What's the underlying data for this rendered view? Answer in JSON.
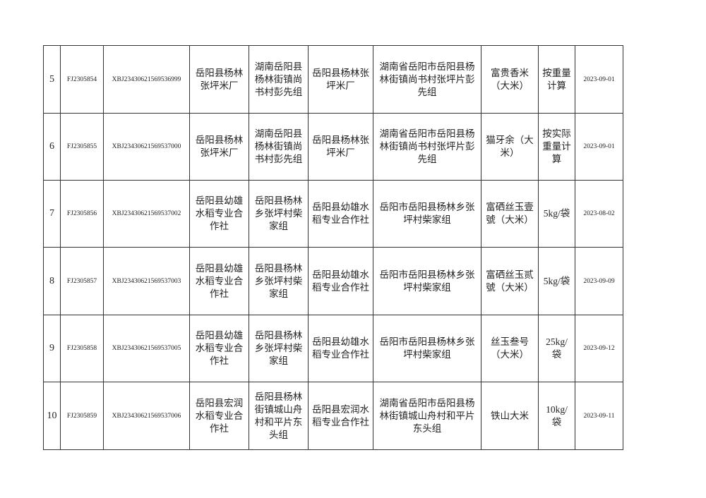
{
  "table": {
    "rows": [
      {
        "no": "5",
        "code": "FJ2305854",
        "sample_id": "XBJ23430621569536999",
        "producer": "岳阳县杨林\n张坪米厂",
        "producer_addr": "湖南岳阳县\n杨林街镇尚\n书村彭先组",
        "seller": "岳阳县杨林张\n坪米厂",
        "seller_addr": "湖南省岳阳市岳阳县杨\n林街镇尚书村张坪片彭\n先组",
        "product": "富贵香米\n（大米）",
        "spec": "按重量\n计算",
        "date": "2023-09-01"
      },
      {
        "no": "6",
        "code": "FJ2305855",
        "sample_id": "XBJ23430621569537000",
        "producer": "岳阳县杨林\n张坪米厂",
        "producer_addr": "湖南岳阳县\n杨林街镇尚\n书村彭先组",
        "seller": "岳阳县杨林张\n坪米厂",
        "seller_addr": "湖南省岳阳市岳阳县杨\n林街镇尚书村张坪片彭\n先组",
        "product": "猫牙余（大\n米）",
        "spec": "按实际\n重量计\n算",
        "date": "2023-09-01"
      },
      {
        "no": "7",
        "code": "FJ2305856",
        "sample_id": "XBJ23430621569537002",
        "producer": "岳阳县幼雄\n水稻专业合\n作社",
        "producer_addr": "岳阳县杨林\n乡张坪村柴\n家组",
        "seller": "岳阳县幼雄水\n稻专业合作社",
        "seller_addr": "岳阳市岳阳县杨林乡张\n坪村柴家组",
        "product": "富硒丝玉壹\n號（大米）",
        "spec": "5kg/袋",
        "date": "2023-08-02"
      },
      {
        "no": "8",
        "code": "FJ2305857",
        "sample_id": "XBJ23430621569537003",
        "producer": "岳阳县幼雄\n水稻专业合\n作社",
        "producer_addr": "岳阳县杨林\n乡张坪村柴\n家组",
        "seller": "岳阳县幼雄水\n稻专业合作社",
        "seller_addr": "岳阳市岳阳县杨林乡张\n坪村柴家组",
        "product": "富硒丝玉贰\n號（大米）",
        "spec": "5kg/袋",
        "date": "2023-09-09"
      },
      {
        "no": "9",
        "code": "FJ2305858",
        "sample_id": "XBJ23430621569537005",
        "producer": "岳阳县幼雄\n水稻专业合\n作社",
        "producer_addr": "岳阳县杨林\n乡张坪村柴\n家组",
        "seller": "岳阳县幼雄水\n稻专业合作社",
        "seller_addr": "岳阳市岳阳县杨林乡张\n坪村柴家组",
        "product": "丝玉叁号\n（大米）",
        "spec": "25kg/\n袋",
        "date": "2023-09-12"
      },
      {
        "no": "10",
        "code": "FJ2305859",
        "sample_id": "XBJ23430621569537006",
        "producer": "岳阳县宏润\n水稻专业合\n作社",
        "producer_addr": "岳阳县杨林\n街镇城山舟\n村和平片东\n头组",
        "seller": "岳阳县宏润水\n稻专业合作社",
        "seller_addr": "湖南省岳阳市岳阳县杨\n林街镇城山舟村和平片\n东头组",
        "product": "铁山大米",
        "spec": "10kg/\n袋",
        "date": "2023-09-11"
      }
    ]
  }
}
